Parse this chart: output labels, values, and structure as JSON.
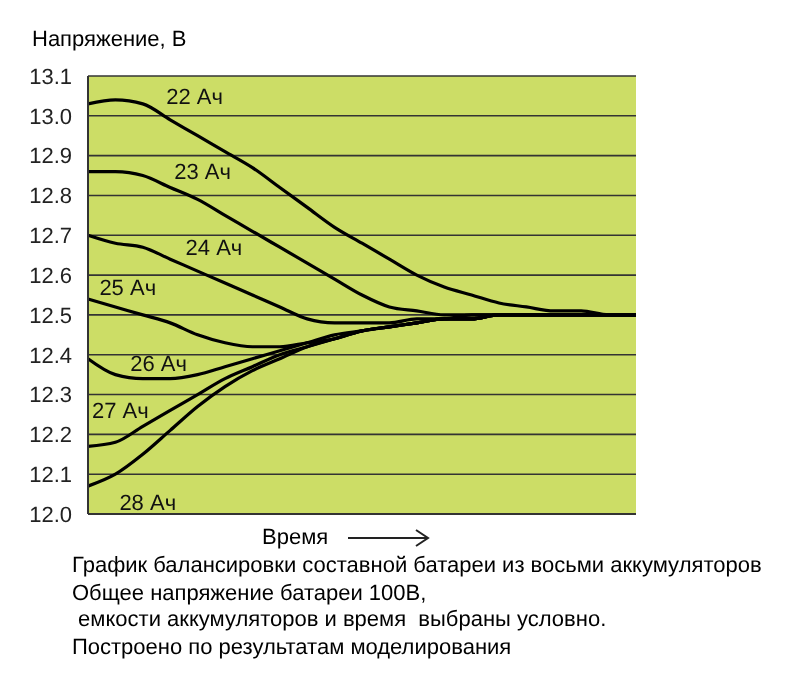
{
  "chart_data": {
    "type": "line",
    "ylabel": "Напряжение, В",
    "xlabel": "Время",
    "categories": [
      null,
      null,
      null,
      null,
      null,
      null,
      null,
      null,
      null,
      null,
      null,
      null,
      null,
      null,
      null,
      null,
      null,
      null,
      null,
      null,
      null
    ],
    "series": [
      {
        "name": "22 Ач",
        "color": "#000000",
        "values": [
          13.03,
          13.04,
          13.03,
          12.99,
          12.95,
          12.91,
          12.87,
          12.82,
          12.77,
          12.72,
          12.68,
          12.64,
          12.6,
          12.57,
          12.55,
          12.53,
          12.52,
          12.51,
          12.51,
          12.5,
          12.5
        ]
      },
      {
        "name": "23 Ач",
        "color": "#000000",
        "values": [
          12.86,
          12.86,
          12.85,
          12.82,
          12.79,
          12.75,
          12.71,
          12.67,
          12.63,
          12.59,
          12.55,
          12.52,
          12.51,
          12.5,
          12.5,
          12.5,
          12.5,
          12.5,
          12.5,
          12.5,
          12.5
        ]
      },
      {
        "name": "24 Ач",
        "color": "#000000",
        "values": [
          12.7,
          12.68,
          12.67,
          12.64,
          12.61,
          12.58,
          12.55,
          12.52,
          12.49,
          12.48,
          12.48,
          12.48,
          12.49,
          12.49,
          12.5,
          12.5,
          12.5,
          12.5,
          12.5,
          12.5,
          12.5
        ]
      },
      {
        "name": "25 Ач",
        "color": "#000000",
        "values": [
          12.54,
          12.52,
          12.5,
          12.48,
          12.45,
          12.43,
          12.42,
          12.42,
          12.43,
          12.44,
          12.46,
          12.47,
          12.48,
          12.49,
          12.49,
          12.5,
          12.5,
          12.5,
          12.5,
          12.5,
          12.5
        ]
      },
      {
        "name": "26 Ач",
        "color": "#000000",
        "values": [
          12.39,
          12.35,
          12.34,
          12.34,
          12.35,
          12.37,
          12.39,
          12.41,
          12.43,
          12.45,
          12.46,
          12.47,
          12.48,
          12.49,
          12.49,
          12.5,
          12.5,
          12.5,
          12.5,
          12.5,
          12.5
        ]
      },
      {
        "name": "27 Ач",
        "color": "#000000",
        "values": [
          12.17,
          12.18,
          12.22,
          12.26,
          12.3,
          12.34,
          12.37,
          12.4,
          12.42,
          12.44,
          12.46,
          12.47,
          12.48,
          12.49,
          12.49,
          12.5,
          12.5,
          12.5,
          12.5,
          12.5,
          12.5
        ]
      },
      {
        "name": "28 Ач",
        "color": "#000000",
        "values": [
          12.07,
          12.1,
          12.15,
          12.21,
          12.27,
          12.32,
          12.36,
          12.39,
          12.42,
          12.44,
          12.46,
          12.47,
          12.48,
          12.49,
          12.49,
          12.5,
          12.5,
          12.5,
          12.5,
          12.5,
          12.5
        ]
      }
    ],
    "ylim": [
      12.0,
      13.1
    ],
    "yticks": [
      {
        "value": 12.0,
        "label": "12.0"
      },
      12.1,
      12.2,
      12.3,
      12.4,
      12.5,
      12.6,
      12.7,
      12.8,
      12.9,
      {
        "value": 13.0,
        "label": "13.0"
      },
      13.1
    ],
    "grid": "y",
    "legend": false,
    "marker": "none",
    "line_style": "solid",
    "annotations": [
      "График балансировки составной батареи из восьми аккумуляторов",
      "Общее напряжение батареи 100В,",
      " емкости аккумуляторов и время  выбраны условно.",
      "Построено по результатам моделирования"
    ]
  }
}
